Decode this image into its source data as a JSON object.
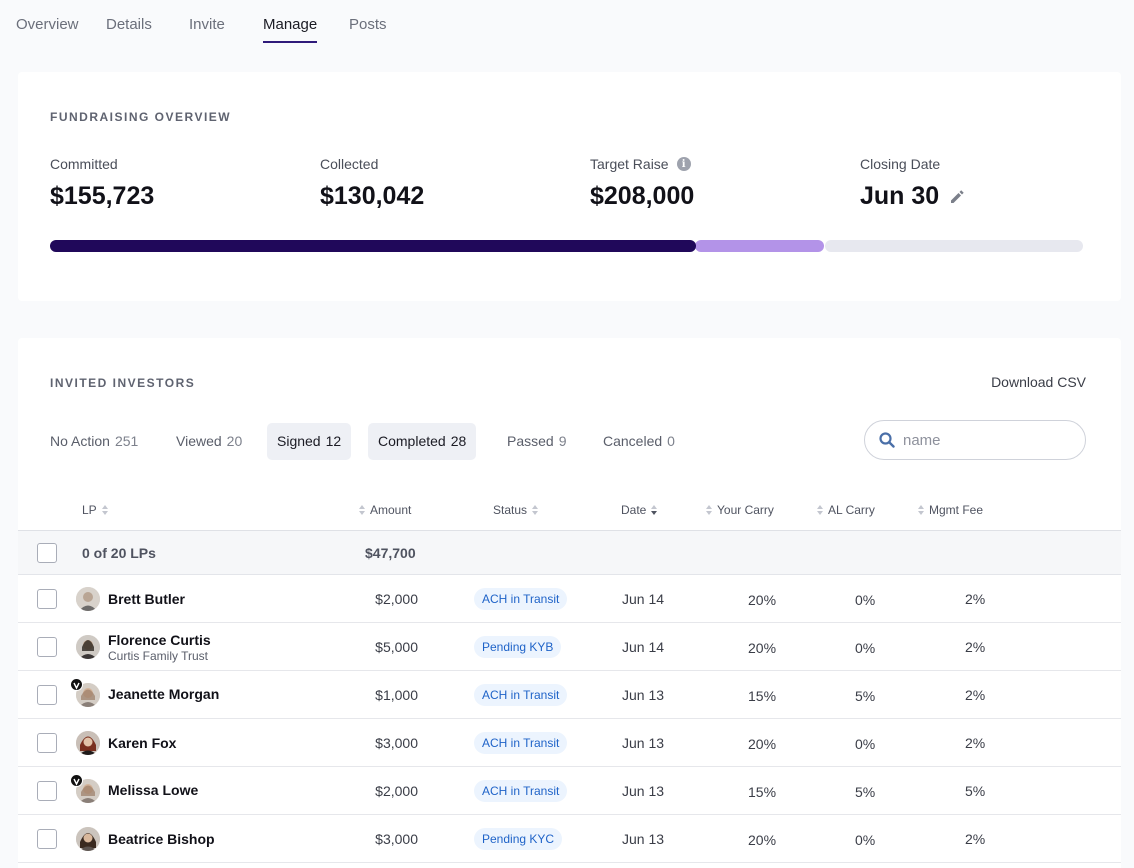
{
  "tabs": [
    {
      "label": "Overview",
      "active": false
    },
    {
      "label": "Details",
      "active": false
    },
    {
      "label": "Invite",
      "active": false
    },
    {
      "label": "Manage",
      "active": true
    },
    {
      "label": "Posts",
      "active": false
    }
  ],
  "overview": {
    "title": "FUNDRAISING OVERVIEW",
    "committed_label": "Committed",
    "committed_value": "$155,723",
    "collected_label": "Collected",
    "collected_value": "$130,042",
    "target_label": "Target Raise",
    "target_value": "$208,000",
    "closing_label": "Closing Date",
    "closing_value": "Jun 30",
    "progress": {
      "collected": 130042,
      "committed": 155723,
      "target": 208000
    },
    "colors": {
      "collected": "#20085a",
      "committed": "#b393e8",
      "remaining": "#e7e8ef"
    }
  },
  "investors": {
    "title": "INVITED INVESTORS",
    "download_label": "Download CSV",
    "filters": [
      {
        "label": "No Action",
        "count": "251",
        "selected": false
      },
      {
        "label": "Viewed",
        "count": "20",
        "selected": false
      },
      {
        "label": "Signed",
        "count": "12",
        "selected": true
      },
      {
        "label": "Completed",
        "count": "28",
        "selected": true
      },
      {
        "label": "Passed",
        "count": "9",
        "selected": false
      },
      {
        "label": "Canceled",
        "count": "0",
        "selected": false
      }
    ],
    "search_placeholder": "name",
    "columns": {
      "lp": "LP",
      "amount": "Amount",
      "status": "Status",
      "date": "Date",
      "your_carry": "Your Carry",
      "al_carry": "AL Carry",
      "mgmt_fee": "Mgmt Fee"
    },
    "summary": {
      "count_label": "0 of 20 LPs",
      "total": "$47,700"
    },
    "rows": [
      {
        "name": "Brett Butler",
        "sub": "",
        "amount": "$2,000",
        "status": "ACH in Transit",
        "date": "Jun 14",
        "your_carry": "20%",
        "al_carry": "0%",
        "mgmt_fee": "2%",
        "badge": false
      },
      {
        "name": "Florence Curtis",
        "sub": "Curtis Family Trust",
        "amount": "$5,000",
        "status": "Pending KYB",
        "date": "Jun 14",
        "your_carry": "20%",
        "al_carry": "0%",
        "mgmt_fee": "2%",
        "badge": false
      },
      {
        "name": "Jeanette Morgan",
        "sub": "",
        "amount": "$1,000",
        "status": "ACH in Transit",
        "date": "Jun 13",
        "your_carry": "15%",
        "al_carry": "5%",
        "mgmt_fee": "2%",
        "badge": true
      },
      {
        "name": "Karen Fox",
        "sub": "",
        "amount": "$3,000",
        "status": "ACH in Transit",
        "date": "Jun 13",
        "your_carry": "20%",
        "al_carry": "0%",
        "mgmt_fee": "2%",
        "badge": false
      },
      {
        "name": "Melissa Lowe",
        "sub": "",
        "amount": "$2,000",
        "status": "ACH in Transit",
        "date": "Jun 13",
        "your_carry": "15%",
        "al_carry": "5%",
        "mgmt_fee": "5%",
        "badge": true
      },
      {
        "name": "Beatrice Bishop",
        "sub": "",
        "amount": "$3,000",
        "status": "Pending KYC",
        "date": "Jun 13",
        "your_carry": "20%",
        "al_carry": "0%",
        "mgmt_fee": "2%",
        "badge": false
      }
    ]
  }
}
